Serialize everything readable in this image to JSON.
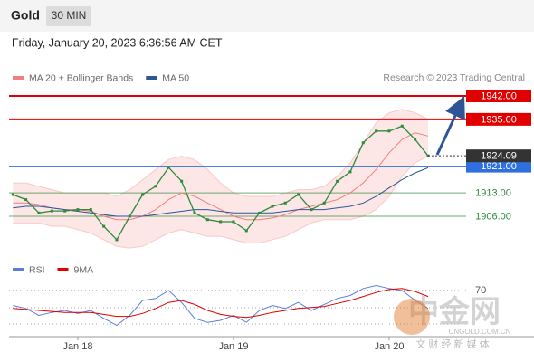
{
  "header": {
    "symbol": "Gold",
    "timeframe": "30 MIN",
    "datetime": "Friday, January 20, 2023 6:36:56 AM CET"
  },
  "source": "Research © 2023 Trading Central",
  "watermark": {
    "brand": "中金网",
    "url": "CNGOLD.COM.CN",
    "tagline": "文 财 经 新 媒 体"
  },
  "chart_data": [
    {
      "type": "line",
      "categories": [
        null,
        null,
        null,
        null,
        null,
        "Jan 18",
        null,
        null,
        null,
        null,
        null,
        null,
        null,
        null,
        null,
        null,
        null,
        "Jan 19",
        null,
        null,
        null,
        null,
        null,
        null,
        null,
        null,
        null,
        null,
        null,
        "Jan 20",
        null,
        null,
        null
      ],
      "price": {
        "color": "#2e8b3a",
        "values": [
          1912.5,
          1911,
          1907,
          1907.6,
          1907.6,
          1908,
          1908,
          1903,
          1899,
          1906,
          1912.5,
          1915,
          1920.6,
          1916.5,
          1907,
          1905,
          1904.4,
          1904.4,
          1901.7,
          1907,
          1909,
          1910,
          1912.5,
          1908,
          1910,
          1916.5,
          1919.3,
          1928,
          1931.5,
          1931.5,
          1933,
          1929,
          1924.09
        ]
      },
      "series": [
        {
          "name": "MA 20 + Bollinger Bands",
          "color": "#f08080",
          "values": [
            1910,
            1910,
            1909.5,
            1908.5,
            1908,
            1908,
            1907.5,
            1906,
            1905,
            1905,
            1906,
            1908,
            1911,
            1913,
            1912,
            1910,
            1908,
            1906,
            1905,
            1905,
            1905.5,
            1906.5,
            1908,
            1909,
            1910,
            1911,
            1913,
            1916,
            1920,
            1925,
            1929,
            1931,
            1930
          ],
          "upper": [
            1916,
            1916,
            1915,
            1914,
            1913,
            1913,
            1913,
            1913,
            1912,
            1914,
            1917,
            1920,
            1923,
            1924,
            1923,
            1920,
            1916,
            1913,
            1912,
            1912,
            1912,
            1913,
            1914,
            1914,
            1915,
            1918,
            1922,
            1928,
            1934,
            1937,
            1938,
            1937,
            1935
          ],
          "lower": [
            1904,
            1904,
            1904,
            1903,
            1903,
            1902,
            1901,
            1899,
            1897,
            1896.5,
            1897,
            1899,
            1901,
            1902,
            1901,
            1900,
            1900,
            1899,
            1898,
            1898,
            1899,
            1900,
            1902,
            1904,
            1905,
            1905,
            1905,
            1906,
            1908,
            1912,
            1918,
            1922,
            1924
          ]
        },
        {
          "name": "MA 50",
          "color": "#2f5597",
          "values": [
            1908.5,
            1909,
            1909,
            1908.5,
            1908,
            1907.5,
            1907,
            1906.5,
            1906,
            1906,
            1906,
            1906.5,
            1907,
            1907.5,
            1908,
            1908,
            1907.5,
            1907,
            1907,
            1907,
            1907,
            1907.5,
            1908,
            1908,
            1908,
            1908.5,
            1909,
            1910,
            1912,
            1914.5,
            1917,
            1919,
            1920.5
          ]
        }
      ],
      "ylim": [
        1896,
        1945
      ],
      "levels": [
        {
          "value": 1942,
          "label": "1942.00",
          "color": "#e00000",
          "style": "box"
        },
        {
          "value": 1935,
          "label": "1935.00",
          "color": "#e00000",
          "style": "box"
        },
        {
          "value": 1921,
          "label": "1921.00",
          "color": "#2f6fe0",
          "style": "box"
        },
        {
          "value": 1913,
          "label": "1913.00",
          "color": "#2e8b3a",
          "style": "text"
        },
        {
          "value": 1906,
          "label": "1906.00",
          "color": "#2e8b3a",
          "style": "text"
        }
      ],
      "last_price": {
        "value": 1924.09,
        "label": "1924.09",
        "color": "#333333"
      }
    },
    {
      "type": "line",
      "series": [
        {
          "name": "RSI",
          "color": "#5b7fd6",
          "values": [
            55,
            52,
            45,
            48,
            50,
            47,
            50,
            42,
            35,
            45,
            60,
            62,
            70,
            58,
            42,
            38,
            40,
            45,
            38,
            50,
            55,
            52,
            58,
            50,
            56,
            62,
            65,
            72,
            75,
            72,
            70,
            60,
            52
          ]
        },
        {
          "name": "9MA",
          "color": "#e00000",
          "values": [
            52,
            51,
            50,
            49,
            48,
            48,
            48,
            46,
            44,
            44,
            47,
            52,
            58,
            60,
            56,
            50,
            46,
            44,
            43,
            45,
            48,
            50,
            52,
            53,
            54,
            57,
            60,
            64,
            68,
            71,
            72,
            69,
            64
          ]
        }
      ],
      "ylim": [
        20,
        80
      ],
      "yticks": [
        70
      ]
    }
  ]
}
